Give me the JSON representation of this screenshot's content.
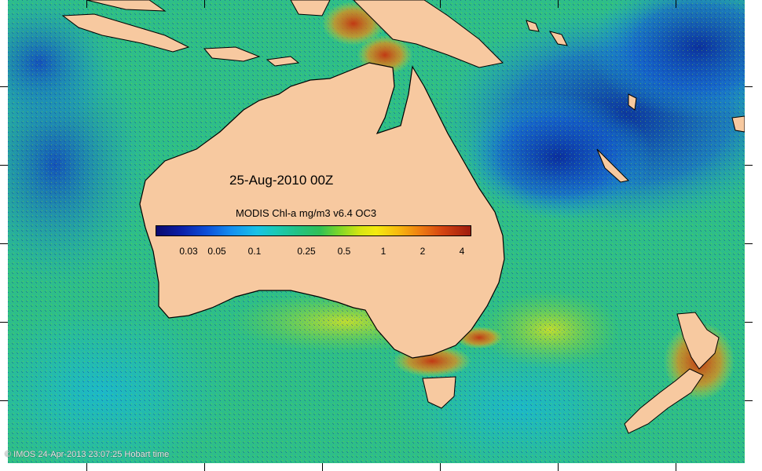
{
  "map": {
    "title": "25-Aug-2010 00Z",
    "colorbar_title": "MODIS Chl-a mg/m3 v6.4 OC3",
    "colorbar_ticks": [
      "0.03",
      "0.05",
      "0.1",
      "0.25",
      "0.5",
      "1",
      "2",
      "4"
    ],
    "copyright": "© IMOS 24-Apr-2013 23:07:25 Hobart time"
  },
  "colors": {
    "land": "#f7c9a0",
    "ocean_base": "#2fbf86",
    "low_chl": "#0b2ea6",
    "high_chl": "#c8320e"
  },
  "icons": {
    "copyright": "copyright-icon"
  }
}
